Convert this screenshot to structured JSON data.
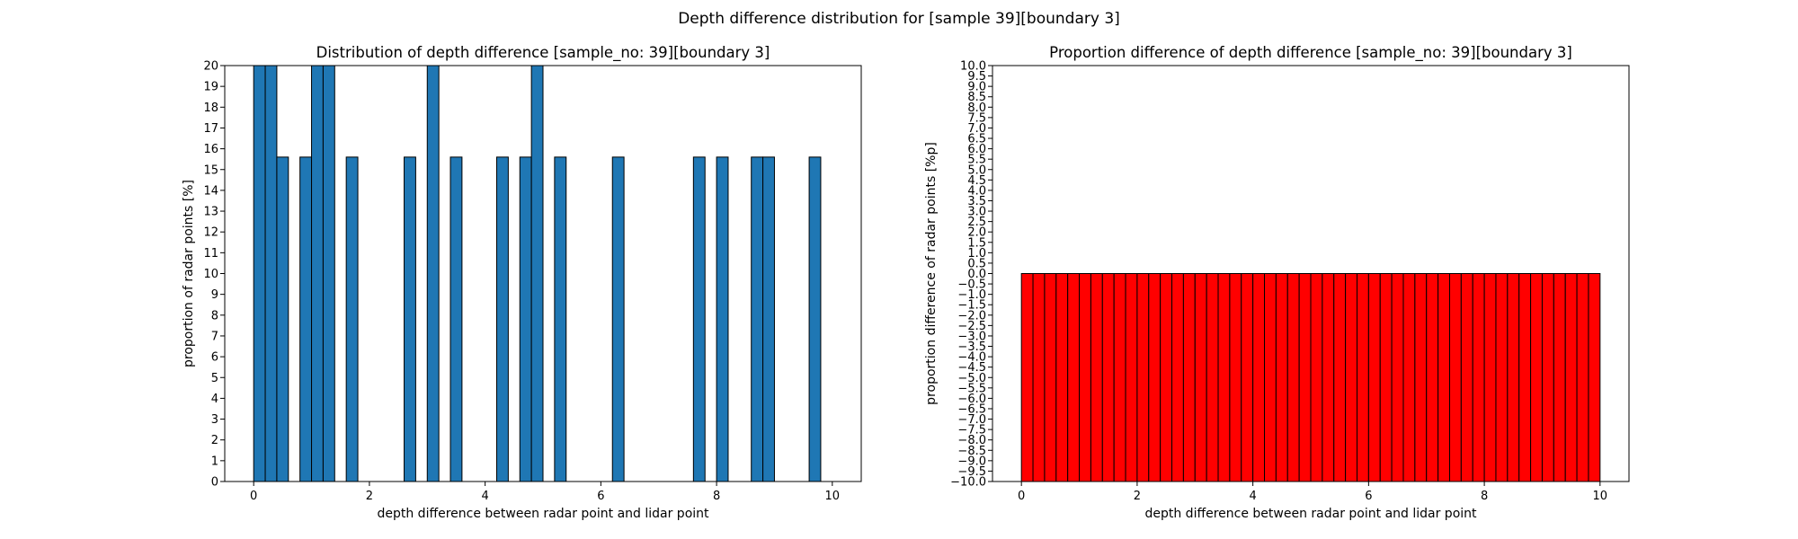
{
  "figure": {
    "suptitle": "Depth difference distribution for [sample 39][boundary 3]",
    "bar_colors": {
      "left": "#1f77b4",
      "right": "#ff0000",
      "edge": "#000000"
    }
  },
  "chart_data": [
    {
      "type": "bar",
      "title": "Distribution of depth difference [sample_no: 39][boundary 3]",
      "xlabel": "depth difference between radar point and lidar point",
      "ylabel": "proportion of radar points [%]",
      "xlim": [
        -0.5,
        10.5
      ],
      "ylim": [
        0,
        20
      ],
      "xticks": [
        0,
        2,
        4,
        6,
        8,
        10
      ],
      "yticks": [
        0,
        1,
        2,
        3,
        4,
        5,
        6,
        7,
        8,
        9,
        10,
        11,
        12,
        13,
        14,
        15,
        16,
        17,
        18,
        19,
        20
      ],
      "bin_width": 0.2,
      "bins": [
        {
          "x": 0.0,
          "value": 20
        },
        {
          "x": 0.2,
          "value": 20
        },
        {
          "x": 0.4,
          "value": 15.6
        },
        {
          "x": 0.8,
          "value": 15.6
        },
        {
          "x": 1.0,
          "value": 20
        },
        {
          "x": 1.2,
          "value": 20
        },
        {
          "x": 1.6,
          "value": 15.6
        },
        {
          "x": 2.6,
          "value": 15.6
        },
        {
          "x": 3.0,
          "value": 20
        },
        {
          "x": 3.4,
          "value": 15.6
        },
        {
          "x": 4.2,
          "value": 15.6
        },
        {
          "x": 4.6,
          "value": 15.6
        },
        {
          "x": 4.8,
          "value": 20
        },
        {
          "x": 5.2,
          "value": 15.6
        },
        {
          "x": 6.2,
          "value": 15.6
        },
        {
          "x": 7.6,
          "value": 15.6
        },
        {
          "x": 8.0,
          "value": 15.6
        },
        {
          "x": 8.6,
          "value": 15.6
        },
        {
          "x": 8.8,
          "value": 15.6
        },
        {
          "x": 9.6,
          "value": 15.6
        }
      ],
      "grid": false
    },
    {
      "type": "bar",
      "title": "Proportion difference of depth difference [sample_no: 39][boundary 3]",
      "xlabel": "depth difference between radar point and lidar point",
      "ylabel": "proportion difference of radar points [%p]",
      "xlim": [
        -0.5,
        10.5
      ],
      "ylim": [
        -10,
        10
      ],
      "xticks": [
        0,
        2,
        4,
        6,
        8,
        10
      ],
      "yticks": [
        -10,
        -9.5,
        -9,
        -8.5,
        -8,
        -7.5,
        -7,
        -6.5,
        -6,
        -5.5,
        -5,
        -4.5,
        -4,
        -3.5,
        -3,
        -2.5,
        -2,
        -1.5,
        -1,
        -0.5,
        0,
        0.5,
        1,
        1.5,
        2,
        2.5,
        3,
        3.5,
        4,
        4.5,
        5,
        5.5,
        6,
        6.5,
        7,
        7.5,
        8,
        8.5,
        9,
        9.5,
        10
      ],
      "bin_width": 0.2,
      "bin_count": 50,
      "bin_start": 0,
      "bottom": -10,
      "top": 0,
      "grid": false
    }
  ]
}
